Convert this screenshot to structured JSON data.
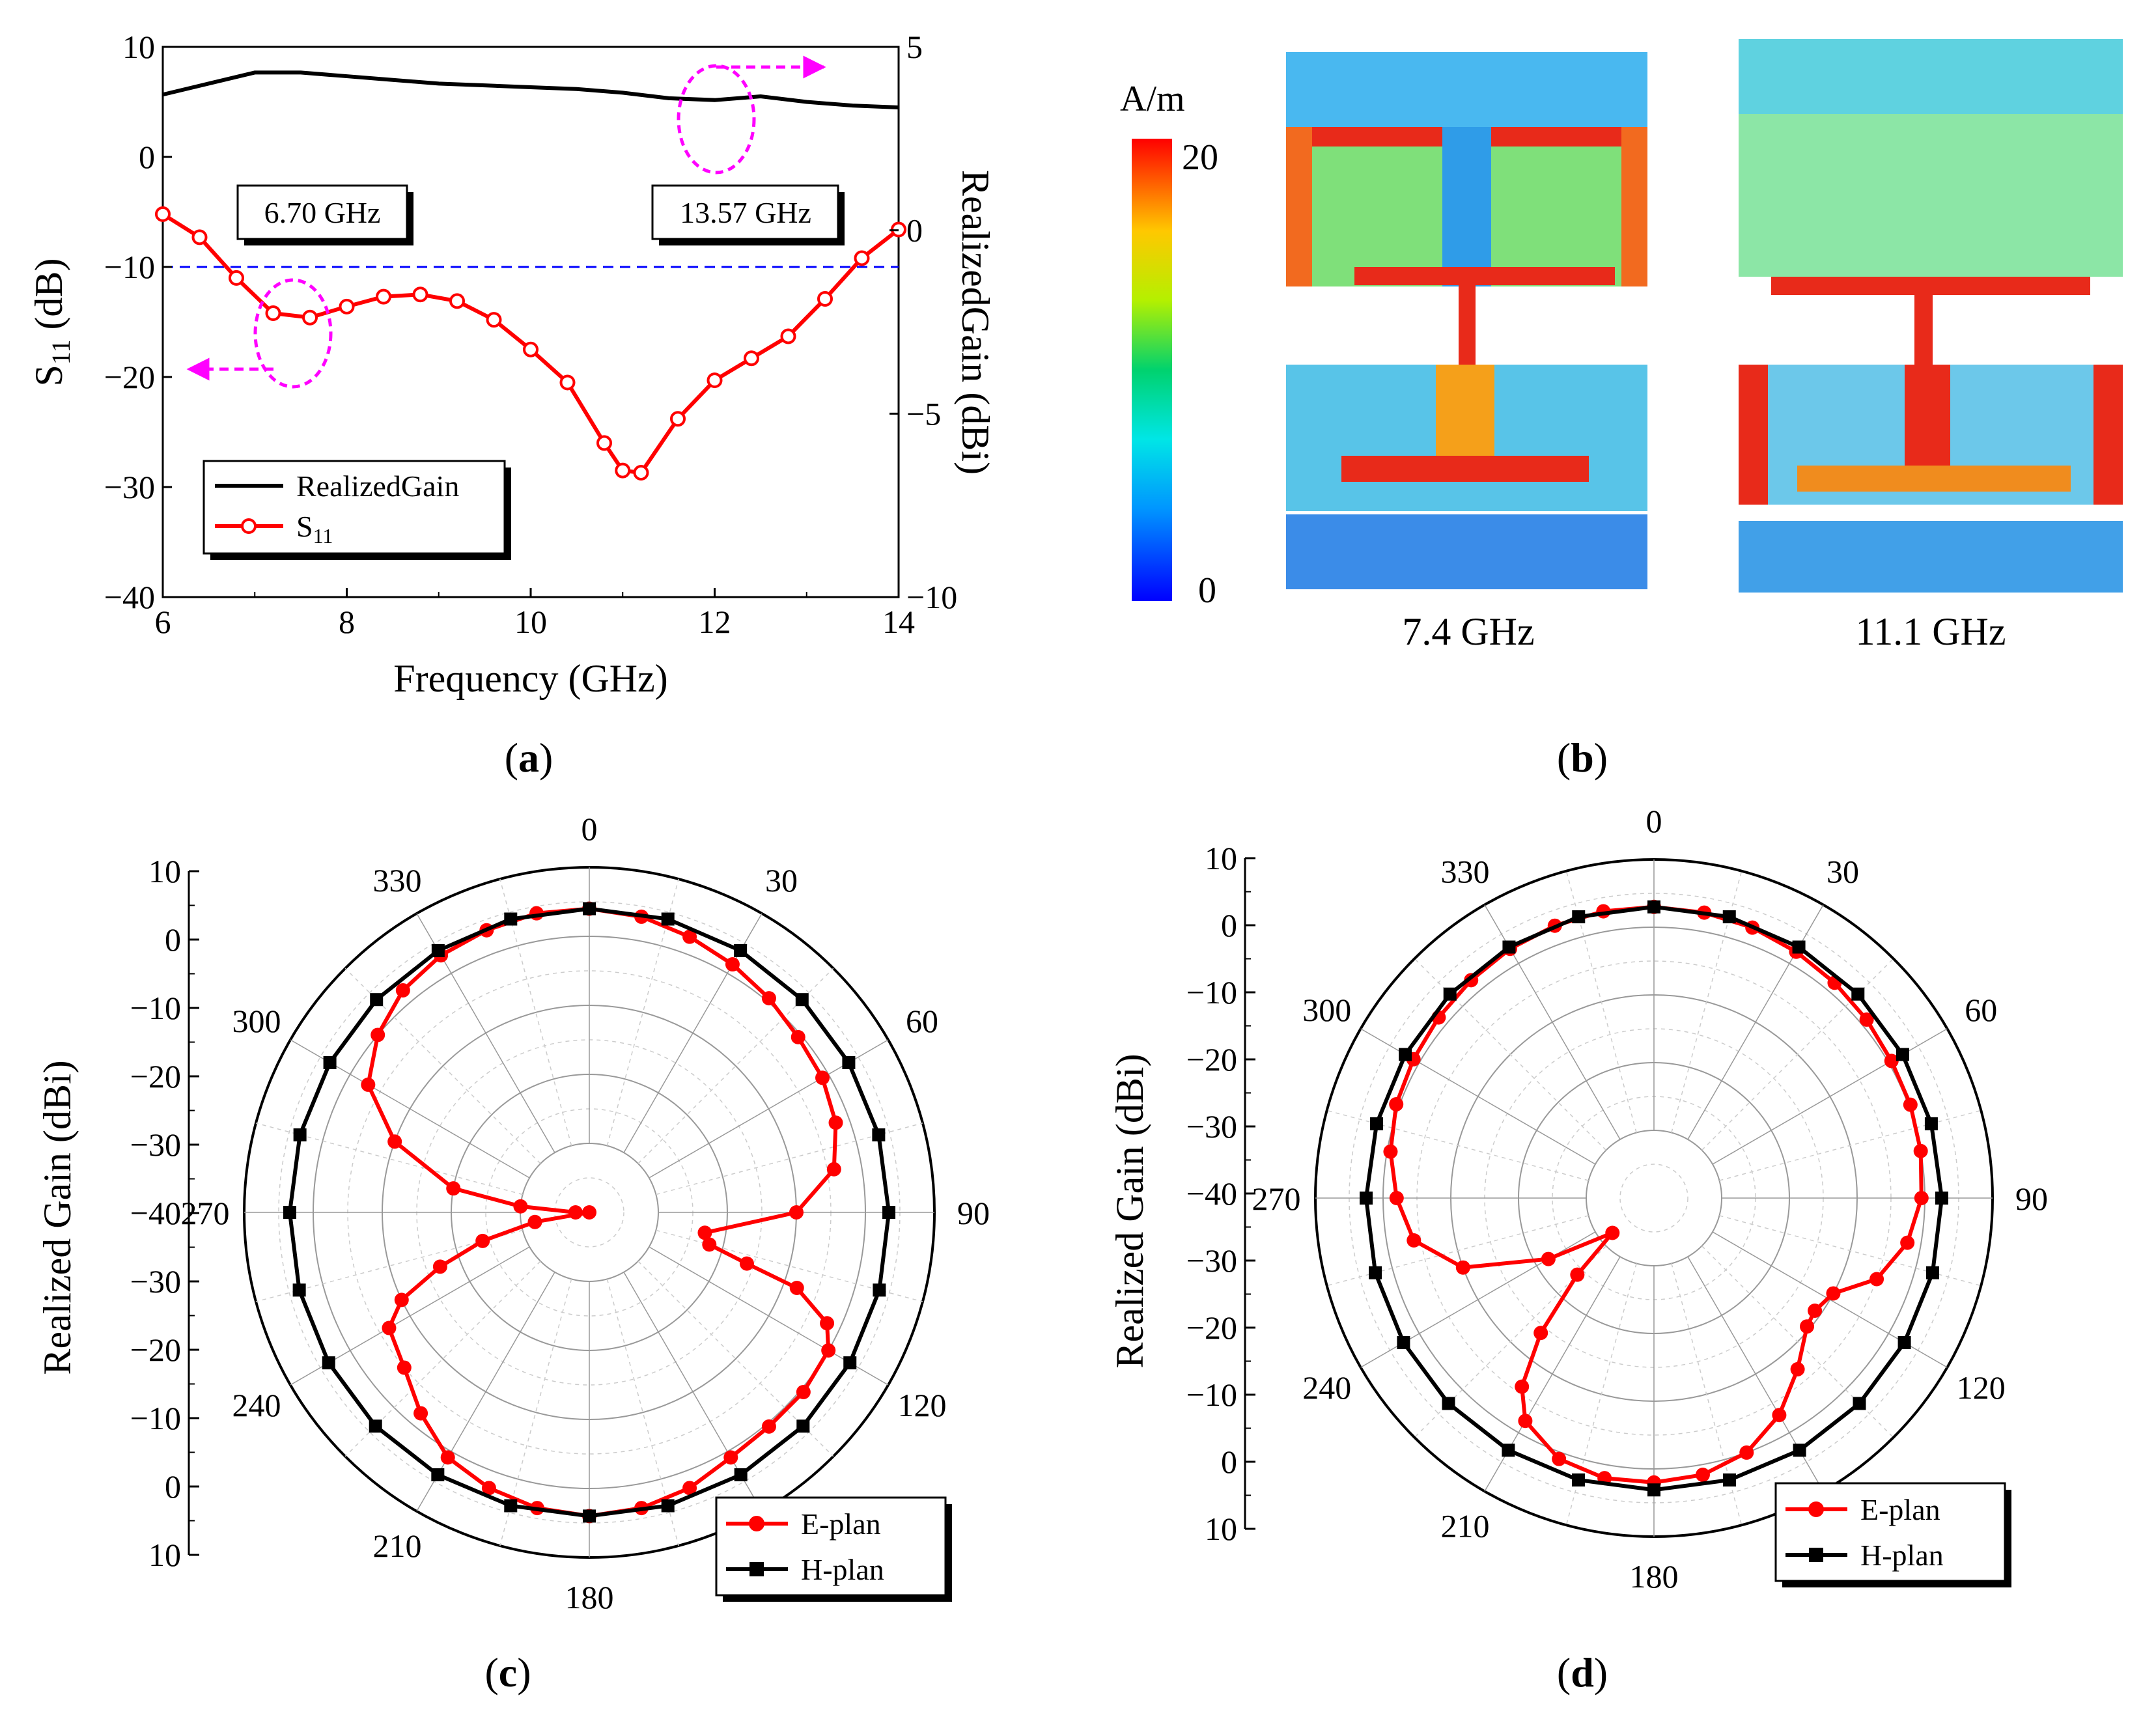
{
  "colors": {
    "gain": "#000000",
    "s11": "#ff0000",
    "eplan": "#ff0000",
    "hplan": "#000000",
    "threshold": "#0000ff",
    "marker": "#ff00ff"
  },
  "panels": {
    "a": "a",
    "b": "b",
    "c": "c",
    "d": "d"
  },
  "chart_data": [
    {
      "id": "a",
      "type": "line",
      "xlabel": "Frequency (GHz)",
      "ylabel": "S11 (dB)",
      "ylabel_main": "S",
      "ylabel_sub": "11",
      "ylabel_tail": " (dB)",
      "y2label": "RealizedGain (dBi)",
      "xlim": [
        6,
        14
      ],
      "ylim": [
        -40,
        10
      ],
      "y2lim": [
        -10,
        5
      ],
      "xticks": [
        "6",
        "8",
        "10",
        "12",
        "14"
      ],
      "yticks": [
        "10",
        "0",
        "−10",
        "−20",
        "−30",
        "−40"
      ],
      "y2ticks": [
        "5",
        "0",
        "−5",
        "−10"
      ],
      "threshold": -10,
      "annotations": [
        "6.70 GHz",
        "13.57 GHz"
      ],
      "legend": [
        "RealizedGain",
        "S",
        "11"
      ],
      "series": [
        {
          "name": "RealizedGain",
          "axis": "right",
          "x": [
            6.0,
            6.5,
            7.0,
            7.5,
            8.0,
            8.5,
            9.0,
            9.5,
            10.0,
            10.5,
            11.0,
            11.5,
            12.0,
            12.5,
            13.0,
            13.5,
            14.0
          ],
          "y": [
            3.7,
            4.0,
            4.3,
            4.3,
            4.2,
            4.1,
            4.0,
            3.95,
            3.9,
            3.85,
            3.75,
            3.6,
            3.55,
            3.65,
            3.5,
            3.4,
            3.35
          ]
        },
        {
          "name": "S11",
          "axis": "left",
          "x": [
            6.0,
            6.4,
            6.8,
            7.2,
            7.6,
            8.0,
            8.4,
            8.8,
            9.2,
            9.6,
            10.0,
            10.4,
            10.8,
            11.0,
            11.2,
            11.6,
            12.0,
            12.4,
            12.8,
            13.2,
            13.6,
            14.0
          ],
          "y": [
            -5.2,
            -7.3,
            -11.0,
            -14.2,
            -14.6,
            -13.6,
            -12.7,
            -12.5,
            -13.1,
            -14.8,
            -17.5,
            -20.5,
            -26.0,
            -28.5,
            -28.7,
            -23.8,
            -20.3,
            -18.3,
            -16.3,
            -12.9,
            -9.2,
            -6.6
          ]
        }
      ]
    },
    {
      "id": "b",
      "type": "heatmap",
      "colorbar_unit": "A/m",
      "colorbar_max": "20",
      "colorbar_min": "0",
      "frequencies": [
        "7.4 GHz",
        "11.1 GHz"
      ]
    },
    {
      "id": "c",
      "type": "line",
      "polar": true,
      "ylabel": "Realized Gain (dBi)",
      "radial_ticks": [
        "10",
        "0",
        "−10",
        "−20",
        "−30",
        "−40",
        "−30",
        "−20",
        "−10",
        "0",
        "10"
      ],
      "rlim": [
        -40,
        10
      ],
      "angle_labels": [
        "0",
        "30",
        "60",
        "90",
        "120",
        "180",
        "210",
        "240",
        "270",
        "300",
        "330"
      ],
      "legend": [
        "E-plan",
        "H-plan"
      ],
      "series": [
        {
          "name": "E-plan",
          "theta": [
            0,
            10,
            20,
            30,
            40,
            50,
            60,
            70,
            80,
            90,
            100,
            105,
            108,
            110,
            115,
            120,
            130,
            140,
            150,
            160,
            170,
            180,
            190,
            200,
            210,
            220,
            230,
            240,
            245,
            250,
            255,
            260,
            265,
            270,
            275,
            280,
            290,
            300,
            310,
            320,
            330,
            340,
            350
          ],
          "r": [
            4.0,
            3.5,
            2.5,
            1.5,
            0.5,
            -0.5,
            -1.0,
            -2.0,
            -4.0,
            -10.0,
            -23.0,
            -22.0,
            -16.0,
            -8.0,
            -2.0,
            0.0,
            0.5,
            0.5,
            1.0,
            2.5,
            3.5,
            4.0,
            3.5,
            2.5,
            1.0,
            -2.0,
            -5.0,
            -6.5,
            -10.0,
            -17.0,
            -24.0,
            -32.0,
            -40.0,
            -38.0,
            -30.0,
            -20.0,
            -10.0,
            -3.0,
            0.0,
            2.0,
            3.0,
            3.5,
            4.0
          ]
        },
        {
          "name": "H-plan",
          "theta": [
            0,
            15,
            30,
            45,
            60,
            75,
            90,
            105,
            120,
            135,
            150,
            165,
            180,
            195,
            210,
            225,
            240,
            255,
            270,
            285,
            300,
            315,
            330,
            345
          ],
          "r": [
            4.0,
            4.0,
            3.8,
            3.6,
            3.4,
            3.4,
            3.4,
            3.5,
            3.6,
            3.8,
            3.9,
            4.0,
            4.0,
            4.0,
            3.9,
            3.8,
            3.6,
            3.5,
            3.4,
            3.4,
            3.4,
            3.6,
            3.8,
            4.0
          ]
        }
      ]
    },
    {
      "id": "d",
      "type": "line",
      "polar": true,
      "ylabel": "Realized Gain (dBi)",
      "radial_ticks": [
        "10",
        "0",
        "−10",
        "−20",
        "−30",
        "−40",
        "−30",
        "−20",
        "−10",
        "0",
        "10"
      ],
      "rlim": [
        -40,
        10
      ],
      "angle_labels": [
        "0",
        "30",
        "60",
        "90",
        "120",
        "180",
        "210",
        "240",
        "270",
        "300",
        "330"
      ],
      "legend": [
        "E-plan",
        "H-plan"
      ],
      "series": [
        {
          "name": "E-plan",
          "theta": [
            0,
            10,
            20,
            30,
            40,
            50,
            60,
            70,
            80,
            90,
            100,
            110,
            118,
            125,
            130,
            140,
            150,
            160,
            170,
            180,
            190,
            200,
            210,
            215,
            220,
            225,
            230,
            240,
            250,
            260,
            270,
            280,
            290,
            300,
            310,
            320,
            330,
            340,
            350
          ],
          "r": [
            3.0,
            2.8,
            2.5,
            2.0,
            1.5,
            1.0,
            0.5,
            0.3,
            0.0,
            -0.5,
            -2.0,
            -5.0,
            -10.0,
            -11.0,
            -10.5,
            -7.0,
            -3.0,
            0.0,
            1.5,
            2.0,
            2.0,
            1.0,
            -2.0,
            -6.0,
            -14.0,
            -24.0,
            -32.0,
            -22.0,
            -10.0,
            -4.0,
            -2.0,
            -0.5,
            0.5,
            1.0,
            1.5,
            2.0,
            2.5,
            2.8,
            3.0
          ]
        },
        {
          "name": "H-plan",
          "theta": [
            0,
            15,
            30,
            45,
            60,
            75,
            90,
            105,
            120,
            135,
            150,
            165,
            180,
            195,
            210,
            225,
            240,
            255,
            270,
            285,
            300,
            315,
            330,
            345
          ],
          "r": [
            3.0,
            3.0,
            2.8,
            2.6,
            2.4,
            2.4,
            2.5,
            2.6,
            2.7,
            2.9,
            3.0,
            3.1,
            3.1,
            3.1,
            3.0,
            2.9,
            2.7,
            2.6,
            2.5,
            2.4,
            2.4,
            2.6,
            2.8,
            3.0
          ]
        }
      ]
    }
  ]
}
